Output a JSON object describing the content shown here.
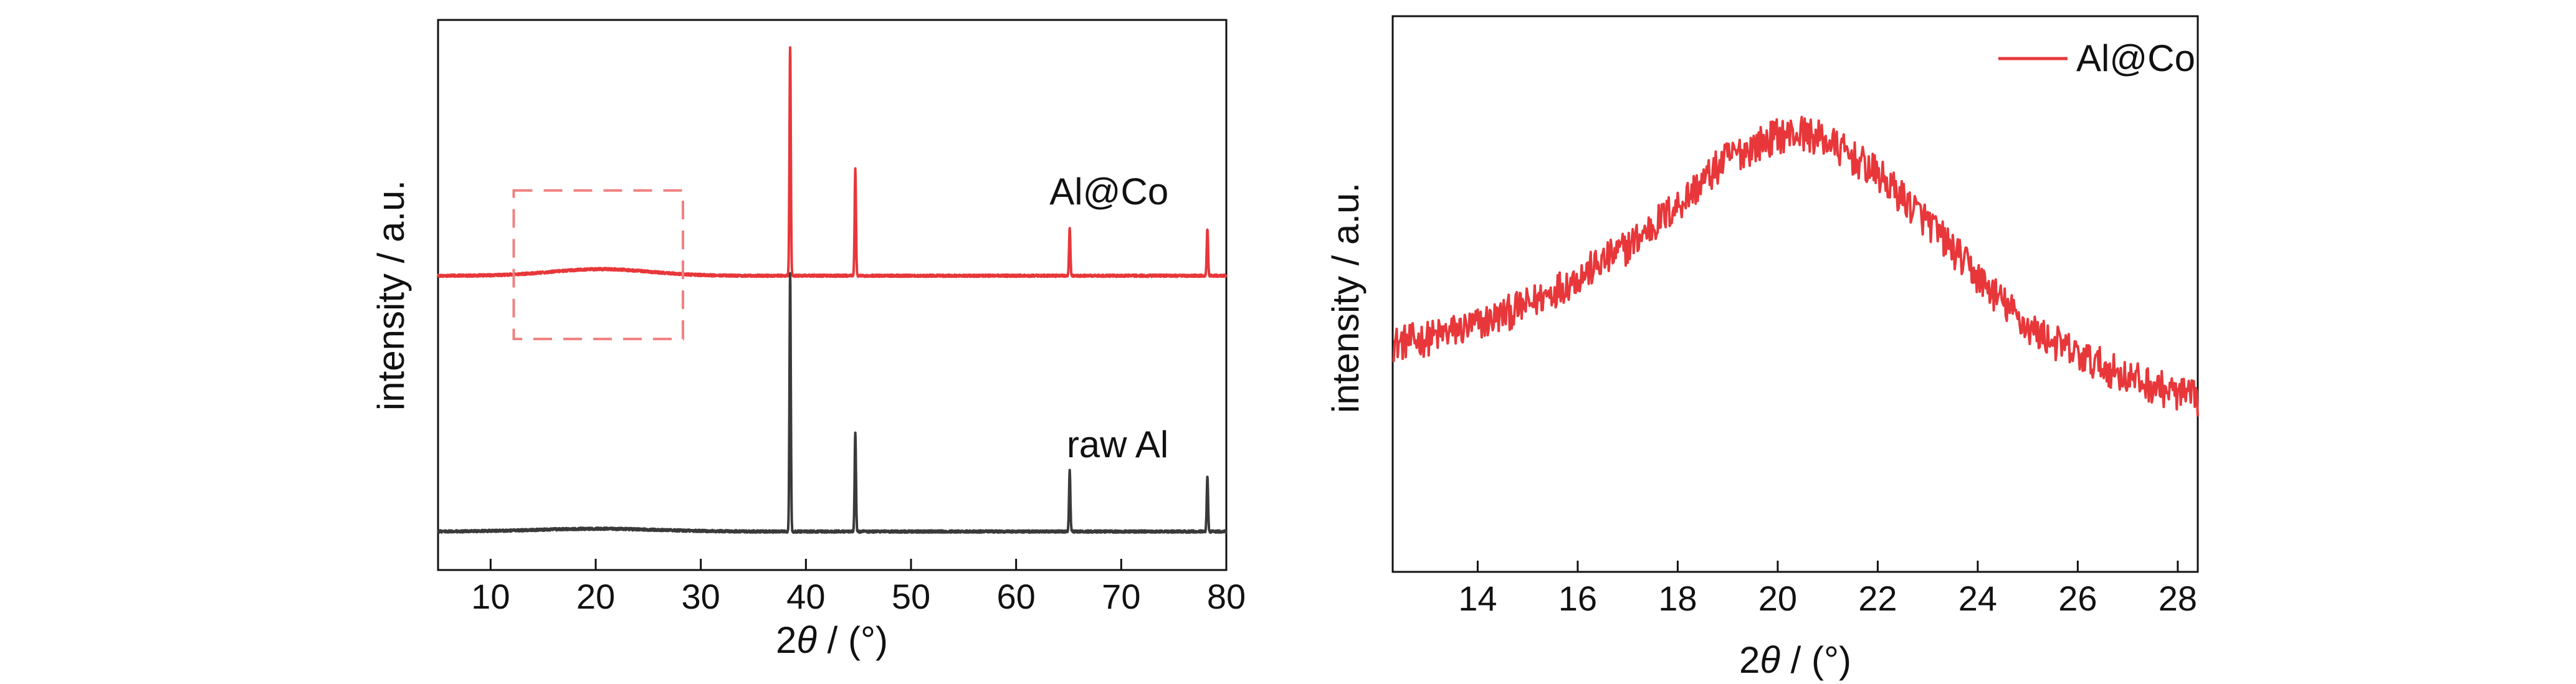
{
  "chart_data": [
    {
      "type": "line",
      "title": "",
      "xlabel_prefix": "2",
      "xlabel_symbol": "θ",
      "xlabel_suffix": " / (°)",
      "ylabel": "intensity / a.u.",
      "xlim": [
        5,
        80
      ],
      "ylim": [
        0,
        1
      ],
      "xticks": [
        10,
        20,
        30,
        40,
        50,
        60,
        70,
        80
      ],
      "yticks_shown": false,
      "series": [
        {
          "name": "Al@Co",
          "color": "#e8373a",
          "baseline": 0.535,
          "amorphous_hump": {
            "center": 20.5,
            "width": 6.5,
            "height": 0.012
          },
          "peaks": [
            {
              "x": 38.5,
              "y": 0.95
            },
            {
              "x": 44.7,
              "y": 0.73
            },
            {
              "x": 65.1,
              "y": 0.62
            },
            {
              "x": 78.2,
              "y": 0.62
            }
          ]
        },
        {
          "name": "raw Al",
          "color": "#3a3a3a",
          "baseline": 0.07,
          "amorphous_hump": {
            "center": 20,
            "width": 8,
            "height": 0.005
          },
          "peaks": [
            {
              "x": 38.5,
              "y": 0.54
            },
            {
              "x": 44.7,
              "y": 0.25
            },
            {
              "x": 65.1,
              "y": 0.18
            },
            {
              "x": 78.2,
              "y": 0.17
            }
          ]
        }
      ],
      "annotations": [
        {
          "text": "Al@Co",
          "color": "#e8373a",
          "x": 74.5,
          "y": 0.665
        },
        {
          "text": "raw Al",
          "color": "#111111",
          "x": 74.5,
          "y": 0.205
        }
      ],
      "highlight_box": {
        "x": [
          12.2,
          28.3
        ],
        "y": [
          0.42,
          0.69
        ],
        "color": "#f08080",
        "style": "dashed"
      }
    },
    {
      "type": "line",
      "title": "",
      "xlabel_prefix": "2",
      "xlabel_symbol": "θ",
      "xlabel_suffix": " / (°)",
      "ylabel": "intensity / a.u.",
      "xlim": [
        12.3,
        28.4
      ],
      "ylim": [
        0,
        1
      ],
      "xticks": [
        14,
        16,
        18,
        20,
        22,
        24,
        26,
        28
      ],
      "yticks_shown": false,
      "legend_position": "top-right",
      "series": [
        {
          "name": "Al@Co",
          "color": "#e8373a",
          "profile": {
            "x": [
              12.3,
              13,
              14,
              15,
              16,
              17,
              18,
              19,
              20,
              20.5,
              21,
              22,
              23,
              24,
              25,
              26,
              27,
              28,
              28.4
            ],
            "y": [
              0.41,
              0.42,
              0.445,
              0.48,
              0.53,
              0.585,
              0.66,
              0.745,
              0.785,
              0.79,
              0.775,
              0.715,
              0.63,
              0.53,
              0.44,
              0.39,
              0.35,
              0.32,
              0.31
            ]
          },
          "noise_amplitude": 0.032
        }
      ]
    }
  ]
}
